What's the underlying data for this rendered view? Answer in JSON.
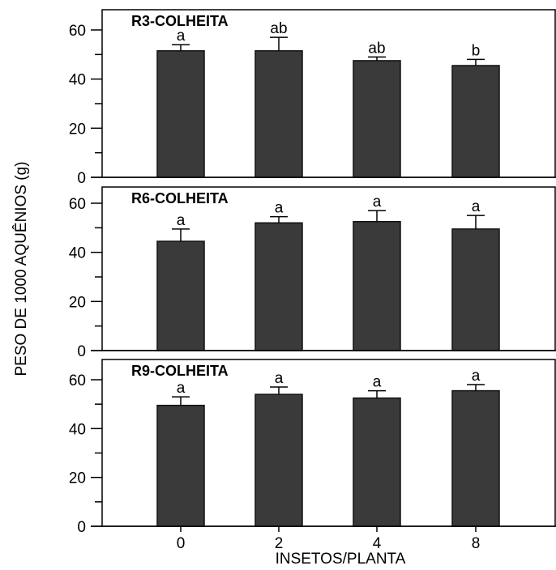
{
  "chart_data": {
    "type": "bar",
    "ylabel": "PESO DE 1000 AQUÊNIOS (g)",
    "xlabel": "INSETOS/PLANTA",
    "categories": [
      "0",
      "2",
      "4",
      "8"
    ],
    "ylim": [
      0,
      60
    ],
    "yticks": [
      "0",
      "20",
      "40",
      "60"
    ],
    "grid": false,
    "bar_color": "#3a3a3a",
    "panels": [
      {
        "title": "R3-COLHEITA",
        "values": [
          51.5,
          51.5,
          47.5,
          45.5
        ],
        "errors": [
          2.5,
          5.5,
          1.5,
          2.5
        ],
        "labels": [
          "a",
          "ab",
          "ab",
          "b"
        ]
      },
      {
        "title": "R6-COLHEITA",
        "values": [
          44.5,
          52,
          52.5,
          49.5
        ],
        "errors": [
          5,
          2.5,
          4.5,
          5.5
        ],
        "labels": [
          "a",
          "a",
          "a",
          "a"
        ]
      },
      {
        "title": "R9-COLHEITA",
        "values": [
          49.5,
          54,
          52.5,
          55.5
        ],
        "errors": [
          3.5,
          3,
          3,
          2.5
        ],
        "labels": [
          "a",
          "a",
          "a",
          "a"
        ]
      }
    ]
  }
}
